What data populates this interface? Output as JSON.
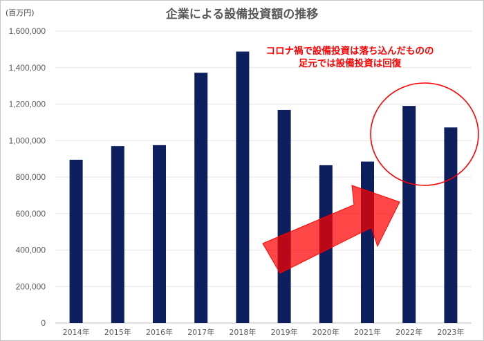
{
  "chart_data": {
    "type": "bar",
    "title": "企業による設備投資額の推移",
    "unit_label": "(百万円)",
    "categories": [
      "2014年",
      "2015年",
      "2016年",
      "2017年",
      "2018年",
      "2019年",
      "2020年",
      "2021年",
      "2022年",
      "2023年"
    ],
    "values": [
      895000,
      970000,
      975000,
      1372000,
      1488000,
      1168000,
      865000,
      885000,
      1190000,
      1072000
    ],
    "ylim": [
      0,
      1600000
    ],
    "yticks": [
      "0",
      "200,000",
      "400,000",
      "600,000",
      "800,000",
      "1,000,000",
      "1,200,000",
      "1,400,000",
      "1,600,000"
    ],
    "grid": true,
    "bar_color": "#0d1f5c",
    "annotation": {
      "lines": [
        "コロナ禍で設備投資は落ち込んだものの",
        "足元では設備投資は回復"
      ],
      "color": "#ff0000"
    },
    "highlight_arrow_color": "#ff0000"
  }
}
